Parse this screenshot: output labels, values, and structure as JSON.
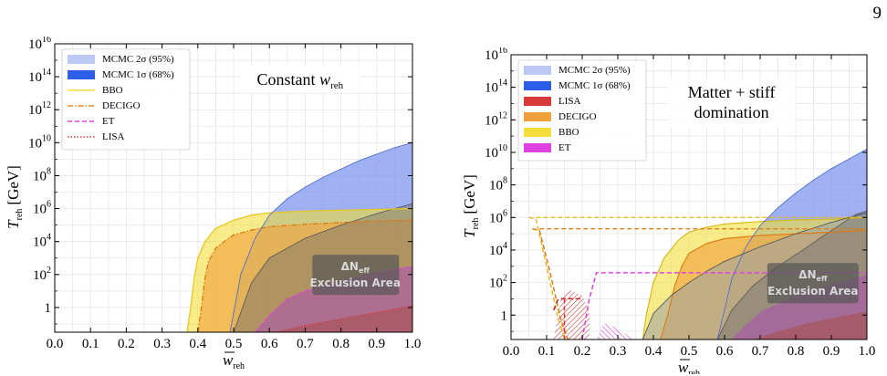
{
  "page_number": "9",
  "colors": {
    "mcmc2": "#bdc9f5",
    "mcmc1": "#2d5ee8",
    "mcmc_fill": "#7f97ef",
    "bbo": "#f3dd3a",
    "decigo": "#f0a03a",
    "et": "#e040e0",
    "lisa": "#d83a3a",
    "exclusion": "#6e6e6e"
  },
  "chart_data": [
    {
      "type": "area",
      "panel": "left",
      "xlim": [
        0,
        1.0
      ],
      "ylim_log10": [
        -1.5,
        16
      ],
      "x_ticks": [
        "0.0",
        "0.1",
        "0.2",
        "0.3",
        "0.4",
        "0.5",
        "0.6",
        "0.7",
        "0.8",
        "0.9",
        "1.0"
      ],
      "y_ticks": [
        {
          "base": "1",
          "exp": ""
        },
        {
          "base": "10",
          "exp": "2"
        },
        {
          "base": "10",
          "exp": "4"
        },
        {
          "base": "10",
          "exp": "6"
        },
        {
          "base": "10",
          "exp": "8"
        },
        {
          "base": "10",
          "exp": "10"
        },
        {
          "base": "10",
          "exp": "12"
        },
        {
          "base": "10",
          "exp": "14"
        },
        {
          "base": "10",
          "exp": "16"
        }
      ],
      "ylabel": "T",
      "ylabel_sub": "reh",
      "ylabel_unit": "[GeV]",
      "xlabel": "w",
      "xlabel_sub": "reh",
      "annotation": "Constant w",
      "annotation_sub": "reh",
      "exclusion_label": [
        "ΔN",
        "Exclusion Area"
      ],
      "exclusion_sub": "eff",
      "grid": true,
      "legend": [
        {
          "label": "MCMC 2σ (95%)",
          "style": "patch",
          "color": "#bdc9f5"
        },
        {
          "label": "MCMC 1σ (68%)",
          "style": "patch",
          "color": "#2d5ee8"
        },
        {
          "label": "BBO",
          "style": "solid",
          "color": "#f3dd3a"
        },
        {
          "label": "DECIGO",
          "style": "dashdot",
          "color": "#ef8a1f"
        },
        {
          "label": "ET",
          "style": "dashed",
          "color": "#e040e0"
        },
        {
          "label": "LISA",
          "style": "dotted",
          "color": "#d83a3a"
        }
      ],
      "series": [
        {
          "name": "MCMC 2σ (95%)",
          "x": [
            0.49,
            0.52,
            0.56,
            0.6,
            0.65,
            0.7,
            0.75,
            0.8,
            0.85,
            0.9,
            0.95,
            1.0
          ],
          "y_log10": [
            -1.5,
            2,
            4.2,
            5.6,
            6.6,
            7.3,
            7.9,
            8.4,
            8.9,
            9.3,
            9.7,
            10.0
          ]
        },
        {
          "name": "BBO",
          "x": [
            0.37,
            0.38,
            0.39,
            0.4,
            0.42,
            0.45,
            0.5,
            0.55,
            0.6,
            0.7,
            0.8,
            0.9,
            1.0
          ],
          "y_log10": [
            -1.5,
            0,
            1.8,
            3.0,
            4.0,
            4.8,
            5.3,
            5.6,
            5.75,
            5.85,
            5.9,
            5.95,
            6.0
          ]
        },
        {
          "name": "DECIGO",
          "x": [
            0.4,
            0.41,
            0.42,
            0.43,
            0.45,
            0.48,
            0.5,
            0.55,
            0.6,
            0.7,
            0.8,
            0.9,
            1.0
          ],
          "y_log10": [
            -1.5,
            0,
            1.8,
            2.8,
            3.6,
            4.1,
            4.4,
            4.7,
            4.9,
            5.05,
            5.15,
            5.25,
            5.3
          ]
        },
        {
          "name": "ET",
          "x": [
            0.56,
            0.6,
            0.65,
            0.7,
            0.8,
            0.9,
            1.0
          ],
          "y_log10": [
            -1.5,
            -0.5,
            0.5,
            1.0,
            1.6,
            2.1,
            2.5
          ]
        },
        {
          "name": "LISA",
          "x": [
            0.62,
            0.7,
            0.8,
            0.9,
            1.0
          ],
          "y_log10": [
            -1.5,
            -1.1,
            -0.7,
            -0.3,
            0.1
          ]
        }
      ]
    },
    {
      "type": "area",
      "panel": "right",
      "xlim": [
        0,
        1.0
      ],
      "ylim_log10": [
        -1.5,
        16
      ],
      "x_ticks": [
        "0.0",
        "0.1",
        "0.2",
        "0.3",
        "0.4",
        "0.5",
        "0.6",
        "0.7",
        "0.8",
        "0.9",
        "1.0"
      ],
      "y_ticks": [
        {
          "base": "1",
          "exp": ""
        },
        {
          "base": "10",
          "exp": "2"
        },
        {
          "base": "10",
          "exp": "4"
        },
        {
          "base": "10",
          "exp": "6"
        },
        {
          "base": "10",
          "exp": "8"
        },
        {
          "base": "10",
          "exp": "10"
        },
        {
          "base": "10",
          "exp": "12"
        },
        {
          "base": "10",
          "exp": "14"
        },
        {
          "base": "10",
          "exp": "16"
        }
      ],
      "ylabel": "T",
      "ylabel_sub": "reh",
      "ylabel_unit": "[GeV]",
      "xlabel": "w",
      "xlabel_sub": "reh",
      "annotation_lines": [
        "Matter + stiff",
        "domination"
      ],
      "exclusion_label": [
        "ΔN",
        "Exclusion Area"
      ],
      "exclusion_sub": "eff",
      "grid": true,
      "legend": [
        {
          "label": "MCMC 2σ (95%)",
          "style": "patch",
          "color": "#bdc9f5"
        },
        {
          "label": "MCMC 1σ (68%)",
          "style": "patch",
          "color": "#2d5ee8"
        },
        {
          "label": "LISA",
          "style": "patch",
          "color": "#d83a3a"
        },
        {
          "label": "DECIGO",
          "style": "patch",
          "color": "#f0a03a"
        },
        {
          "label": "BBO",
          "style": "patch",
          "color": "#f3dd3a"
        },
        {
          "label": "ET",
          "style": "patch",
          "color": "#e040e0"
        }
      ],
      "series": [
        {
          "name": "MCMC 2σ (95%)",
          "x": [
            0.58,
            0.62,
            0.66,
            0.7,
            0.75,
            0.8,
            0.85,
            0.9,
            0.95,
            1.0
          ],
          "y_log10": [
            -1.5,
            2.2,
            4.2,
            5.5,
            6.6,
            7.5,
            8.3,
            9.0,
            9.6,
            10.2
          ]
        },
        {
          "name": "MCMC 1σ (68%)",
          "x": [
            0.37,
            0.4,
            0.45,
            0.5,
            0.55,
            0.6,
            0.7,
            0.8,
            0.9,
            0.95,
            1.0
          ],
          "y_log10": [
            -1.5,
            0.1,
            1.2,
            2.0,
            2.7,
            3.3,
            4.2,
            5.0,
            5.7,
            6.0,
            6.3
          ]
        },
        {
          "name": "BBO",
          "x": [
            0.37,
            0.38,
            0.4,
            0.43,
            0.47,
            0.5,
            0.55,
            0.6,
            0.7,
            0.8,
            0.9,
            1.0
          ],
          "y_log10": [
            -1.5,
            0,
            2.0,
            3.5,
            4.6,
            5.1,
            5.4,
            5.6,
            5.75,
            5.85,
            5.9,
            6.0
          ]
        },
        {
          "name": "DECIGO",
          "x": [
            0.42,
            0.44,
            0.46,
            0.48,
            0.5,
            0.55,
            0.6,
            0.7,
            0.8,
            0.9,
            1.0
          ],
          "y_log10": [
            -1.5,
            0,
            1.8,
            3.0,
            3.8,
            4.4,
            4.7,
            4.9,
            5.0,
            5.1,
            5.2
          ]
        },
        {
          "name": "ET",
          "x": [
            0.62,
            0.66,
            0.7,
            0.8,
            0.9,
            1.0
          ],
          "y_log10": [
            -1.5,
            -0.6,
            0.2,
            1.2,
            1.9,
            2.5
          ]
        },
        {
          "name": "LISA",
          "x": [
            0.68,
            0.75,
            0.85,
            0.95,
            1.0
          ],
          "y_log10": [
            -1.5,
            -1.0,
            -0.4,
            0.0,
            0.2
          ]
        }
      ],
      "low_w_regions": [
        {
          "name": "BBO",
          "x": [
            0.05,
            0.07,
            0.1,
            0.13,
            0.15,
            0.17
          ],
          "y_log10": [
            6.0,
            5.9,
            3.0,
            0.0,
            -1.5,
            -1.5
          ]
        },
        {
          "name": "DECIGO",
          "x": [
            0.06,
            0.08,
            0.11,
            0.14,
            0.16
          ],
          "y_log10": [
            5.3,
            5.2,
            2.6,
            -0.3,
            -1.5
          ]
        },
        {
          "name": "LISA",
          "x": [
            0.12,
            0.13,
            0.14,
            0.15,
            0.16,
            0.2
          ],
          "y_log10": [
            0.3,
            0.9,
            1.0,
            1.0,
            1.0,
            1.0
          ]
        },
        {
          "name": "ET",
          "x": [
            0.2,
            0.22,
            0.24,
            0.3,
            0.5,
            1.0
          ],
          "y_log10": [
            -1.5,
            1.0,
            2.6,
            2.6,
            2.6,
            2.6
          ]
        }
      ]
    }
  ]
}
